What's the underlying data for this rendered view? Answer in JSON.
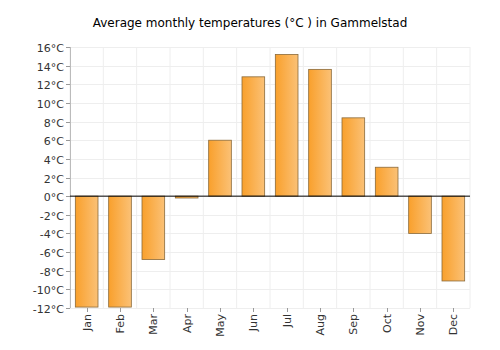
{
  "chart_data": {
    "type": "bar",
    "title": "Average monthly temperatures (°C ) in Gammelstad",
    "categories": [
      "Jan",
      "Feb",
      "Mar",
      "Apr",
      "May",
      "Jun",
      "Jul",
      "Aug",
      "Sep",
      "Oct",
      "Nov",
      "Dec"
    ],
    "values": [
      -11.9,
      -11.9,
      -6.8,
      -0.2,
      6,
      12.8,
      15.2,
      13.6,
      8.4,
      3.1,
      -4,
      -9.1
    ],
    "color": "#f9a02c",
    "ylim": [
      -12,
      16
    ],
    "yticks": [
      {
        "value": -12,
        "label": "-12°C"
      },
      {
        "value": -10,
        "label": "-10°C"
      },
      {
        "value": -8,
        "label": "-8°C"
      },
      {
        "value": -6,
        "label": "-6°C"
      },
      {
        "value": -4,
        "label": "-4°C"
      },
      {
        "value": -2,
        "label": "-2°C"
      },
      {
        "value": 0,
        "label": "0°C"
      },
      {
        "value": 2,
        "label": "2°C"
      },
      {
        "value": 4,
        "label": "4°C"
      },
      {
        "value": 6,
        "label": "6°C"
      },
      {
        "value": 8,
        "label": "8°C"
      },
      {
        "value": 10,
        "label": "10°C"
      },
      {
        "value": 12,
        "label": "12°C"
      },
      {
        "value": 14,
        "label": "14°C"
      },
      {
        "value": 16,
        "label": "16°C"
      }
    ],
    "grid": true
  }
}
